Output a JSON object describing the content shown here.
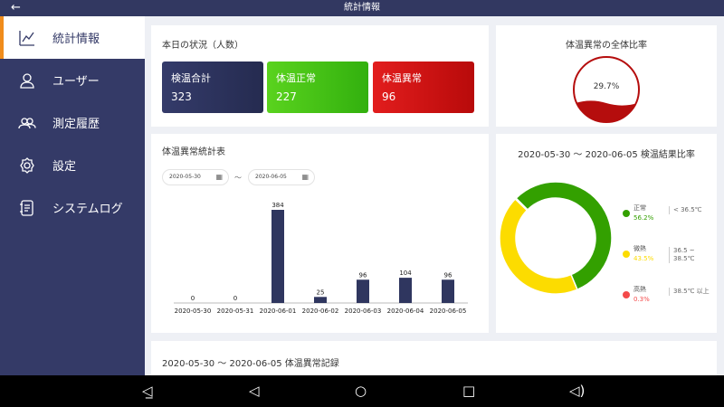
{
  "header": {
    "title": "統計情報",
    "back_icon": "arrow-left-icon"
  },
  "sidebar": {
    "items": [
      {
        "label": "統計情報",
        "icon": "chart-icon",
        "active": true
      },
      {
        "label": "ユーザー",
        "icon": "user-icon"
      },
      {
        "label": "測定履歴",
        "icon": "users-icon"
      },
      {
        "label": "設定",
        "icon": "gear-icon"
      },
      {
        "label": "システムログ",
        "icon": "log-icon"
      }
    ]
  },
  "today": {
    "title": "本日の状況（人数）",
    "stats": [
      {
        "label": "検温合計",
        "value": "323",
        "color": "#2d3461"
      },
      {
        "label": "体温正常",
        "value": "227",
        "color": "#3ec01a"
      },
      {
        "label": "体温異常",
        "value": "96",
        "color": "#d01515"
      }
    ]
  },
  "gauge": {
    "title": "体温異常の全体比率",
    "value": "29.7%",
    "fraction": 0.297,
    "color": "#b50d0d"
  },
  "barchart": {
    "title": "体温異常統計表",
    "date_from": "2020-05-30",
    "date_to": "2020-06-05",
    "separator": "～"
  },
  "chart_data": [
    {
      "type": "bar",
      "title": "体温異常統計表",
      "categories": [
        "2020-05-30",
        "2020-05-31",
        "2020-06-01",
        "2020-06-02",
        "2020-06-03",
        "2020-06-04",
        "2020-06-05"
      ],
      "values": [
        0,
        0,
        384,
        25,
        96,
        104,
        96
      ],
      "color": "#2f365f"
    },
    {
      "type": "pie",
      "title": "2020-05-30 ～ 2020-06-05 検温結果比率",
      "slices": [
        {
          "name": "正常",
          "value": 56.2,
          "label": "56.2%",
          "range": "< 36.5℃",
          "color": "#33a000"
        },
        {
          "name": "微熱",
          "value": 43.5,
          "label": "43.5%",
          "range": "36.5 ~ 38.5℃",
          "color": "#fcdc00"
        },
        {
          "name": "高熱",
          "value": 0.3,
          "label": "0.3%",
          "range": "38.5℃ 以上",
          "color": "#f44a4a"
        }
      ]
    }
  ],
  "records": {
    "title": "2020-05-30 ～ 2020-06-05 体温異常記録"
  },
  "navbar": {
    "icons": [
      "volume-down-icon",
      "back-triangle-icon",
      "home-circle-icon",
      "recents-square-icon",
      "volume-up-icon"
    ]
  }
}
